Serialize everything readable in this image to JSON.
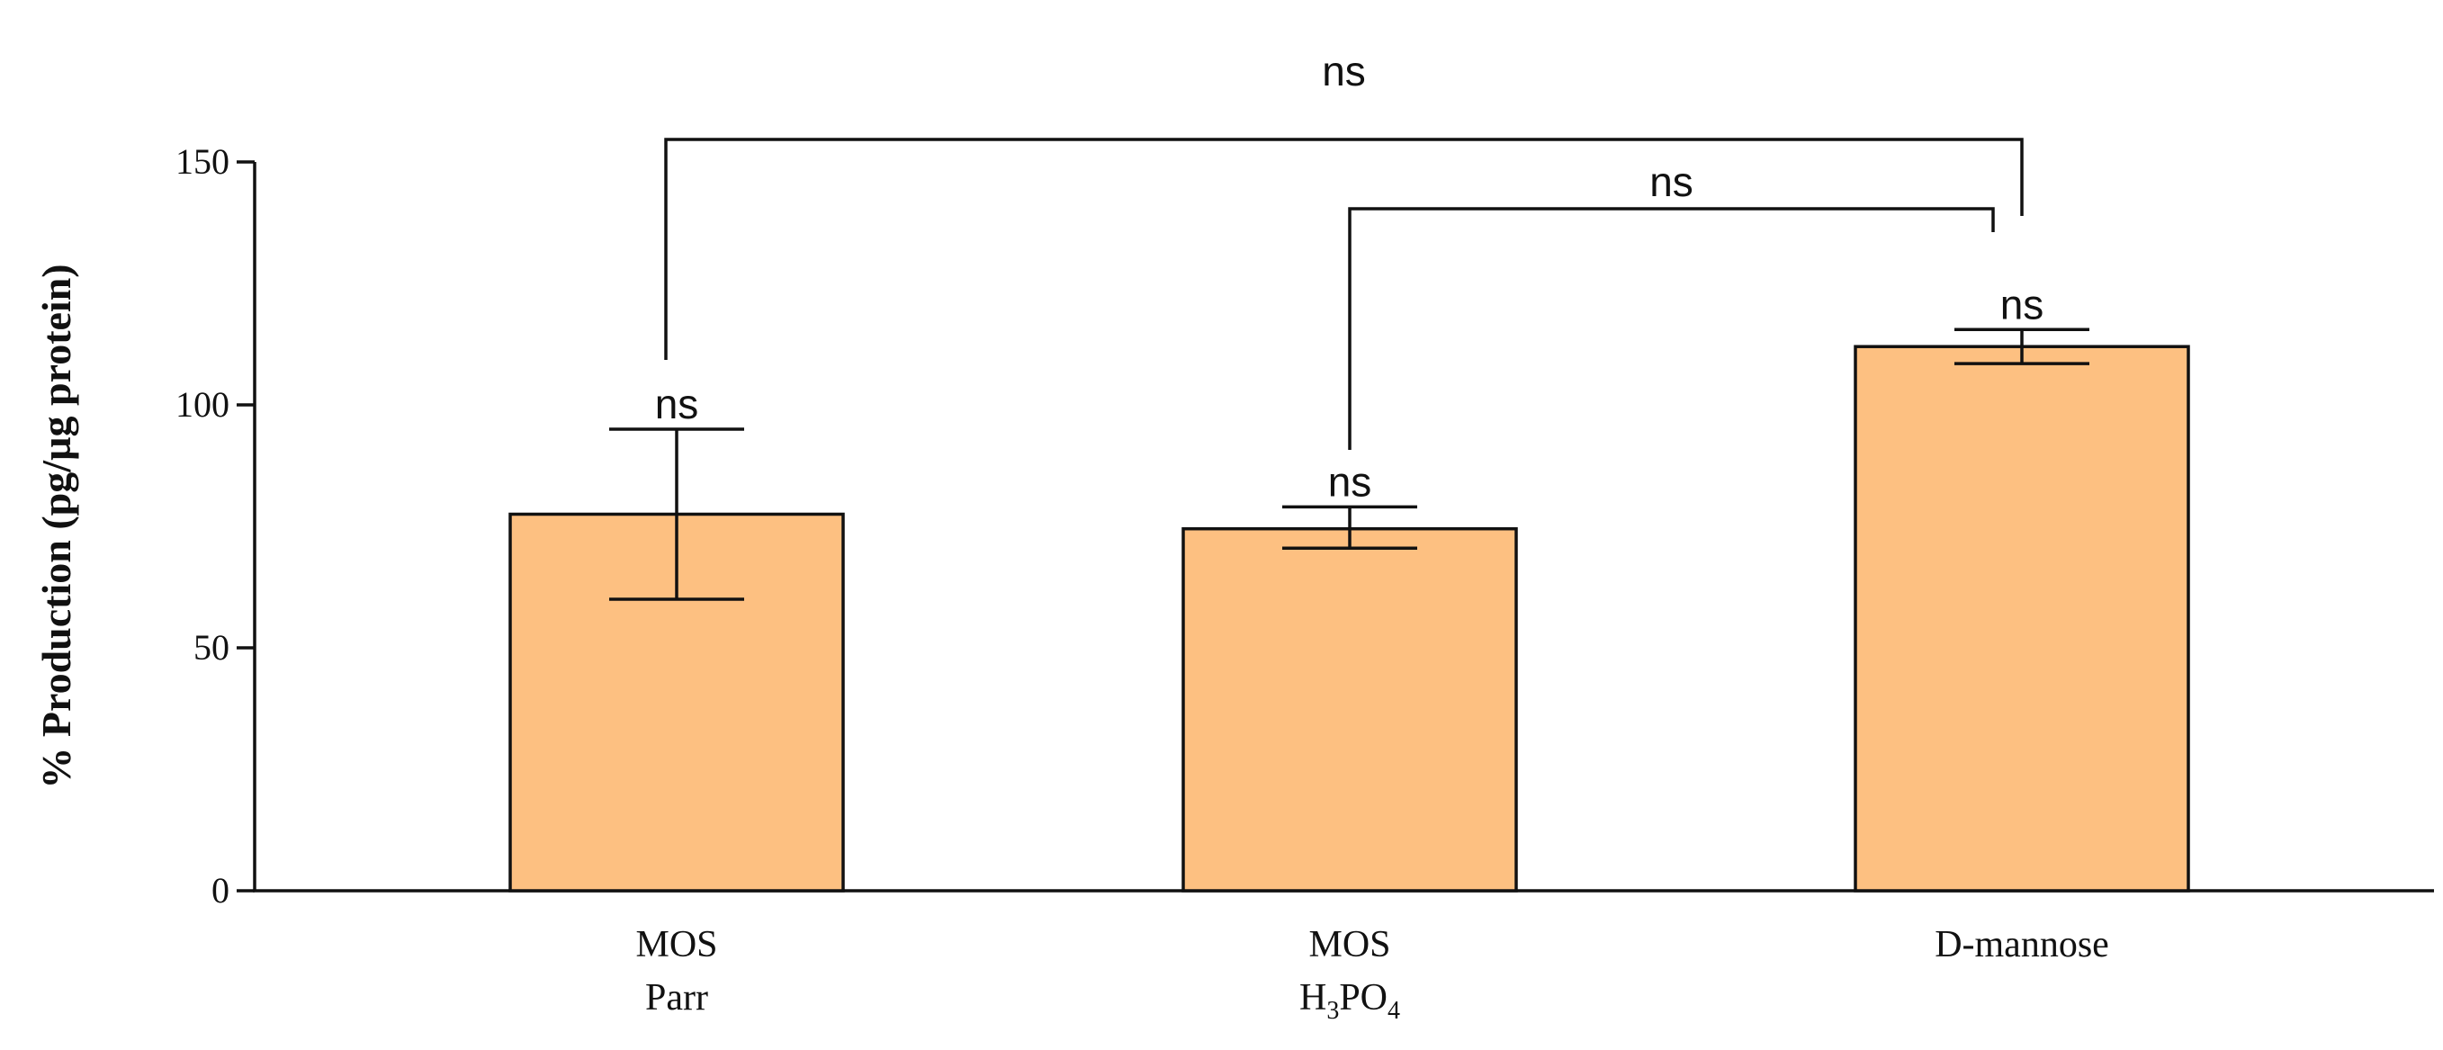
{
  "chart_data": {
    "type": "bar",
    "title": "",
    "xlabel": "",
    "ylabel": "% Production (pg/µg protein)",
    "ylim": [
      0,
      150
    ],
    "yticks": [
      0,
      50,
      100,
      150
    ],
    "ytick_labels": [
      "0",
      "50",
      "100",
      "150"
    ],
    "grid": false,
    "legend": "none",
    "bar_color": "#FDC081",
    "categories": [
      {
        "line1": "MOS",
        "line2_main": "Parr",
        "line2_parts": []
      },
      {
        "line1": "MOS",
        "line2_main": "",
        "line2_parts": [
          "H",
          "3",
          "PO",
          "4"
        ]
      },
      {
        "line1": "D-mannose",
        "line2_main": "",
        "line2_parts": []
      }
    ],
    "values": [
      77.5,
      74.5,
      112
    ],
    "error_upper": [
      95,
      79,
      115.5
    ],
    "error_lower": [
      60,
      70.5,
      108.5
    ],
    "bar_annotations": [
      "ns",
      "ns",
      "ns"
    ],
    "comparisons": [
      {
        "from": 0,
        "to": 2,
        "label": "ns"
      },
      {
        "from": 1,
        "to": 2,
        "label": "ns"
      }
    ]
  }
}
